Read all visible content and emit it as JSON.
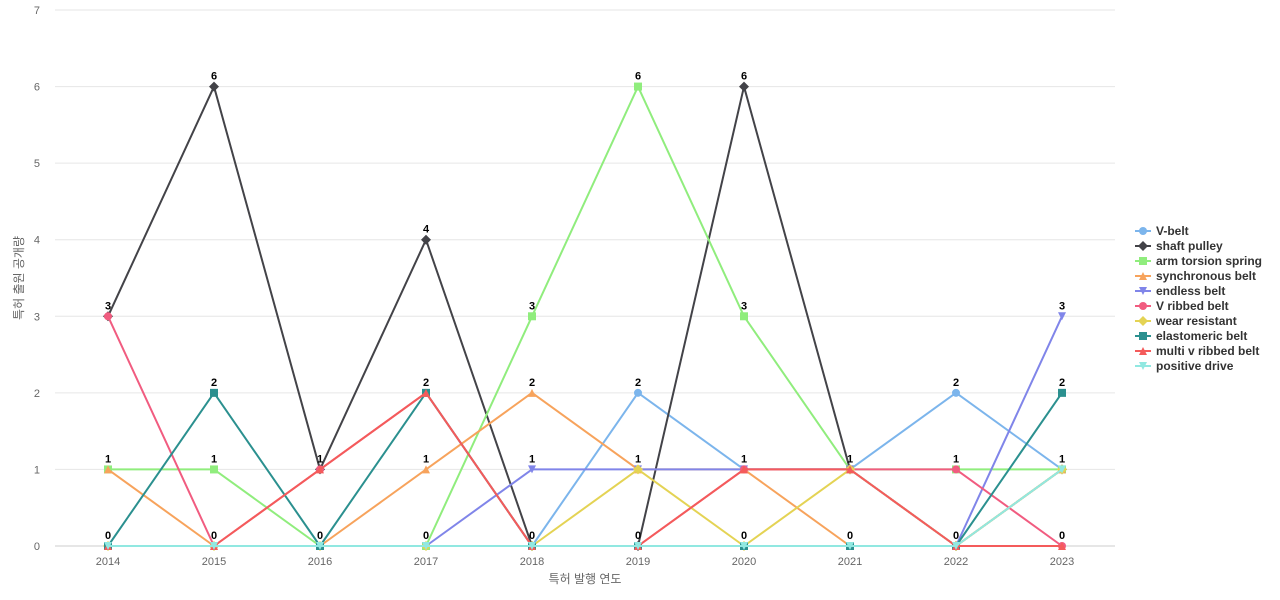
{
  "chart_data": {
    "type": "line",
    "title": "",
    "xlabel": "특허 발행 연도",
    "ylabel": "특허 출원 공개량",
    "categories": [
      "2014",
      "2015",
      "2016",
      "2017",
      "2018",
      "2019",
      "2020",
      "2021",
      "2022",
      "2023"
    ],
    "ylim": [
      0,
      7
    ],
    "yticks": [
      "0",
      "1",
      "2",
      "3",
      "4",
      "5",
      "6",
      "7"
    ],
    "grid": true,
    "legend_position": "right",
    "series": [
      {
        "name": "V-belt",
        "color": "#7cb5ec",
        "marker": "circle",
        "values": [
          0,
          0,
          0,
          0,
          0,
          2,
          1,
          1,
          2,
          1
        ]
      },
      {
        "name": "shaft pulley",
        "color": "#434348",
        "marker": "diamond",
        "values": [
          3,
          6,
          1,
          4,
          0,
          0,
          6,
          1,
          0,
          1
        ]
      },
      {
        "name": "arm torsion spring",
        "color": "#90ed7d",
        "marker": "square",
        "values": [
          1,
          1,
          0,
          0,
          3,
          6,
          3,
          1,
          1,
          1
        ]
      },
      {
        "name": "synchronous belt",
        "color": "#f7a35c",
        "marker": "triangle",
        "values": [
          1,
          0,
          0,
          1,
          2,
          1,
          1,
          0,
          0,
          1
        ]
      },
      {
        "name": "endless belt",
        "color": "#8085e9",
        "marker": "triangle-down",
        "values": [
          0,
          0,
          0,
          0,
          1,
          1,
          1,
          1,
          0,
          3
        ]
      },
      {
        "name": "V ribbed belt",
        "color": "#f15c80",
        "marker": "circle",
        "values": [
          3,
          0,
          1,
          2,
          0,
          0,
          1,
          1,
          1,
          0
        ]
      },
      {
        "name": "wear resistant",
        "color": "#e4d354",
        "marker": "diamond",
        "values": [
          0,
          0,
          0,
          0,
          0,
          1,
          0,
          1,
          0,
          1
        ]
      },
      {
        "name": "elastomeric belt",
        "color": "#2b908f",
        "marker": "square",
        "values": [
          0,
          2,
          0,
          2,
          0,
          0,
          0,
          0,
          0,
          2
        ]
      },
      {
        "name": "multi v ribbed belt",
        "color": "#f45b5b",
        "marker": "triangle",
        "values": [
          0,
          0,
          1,
          2,
          0,
          0,
          1,
          1,
          0,
          0
        ]
      },
      {
        "name": "positive drive",
        "color": "#91e8e1",
        "marker": "triangle-down",
        "values": [
          0,
          0,
          0,
          0,
          0,
          0,
          0,
          0,
          0,
          1
        ]
      }
    ],
    "data_labels": [
      {
        "category": "2014",
        "values": [
          "3",
          "1",
          "0"
        ]
      },
      {
        "category": "2015",
        "values": [
          "6",
          "2",
          "1",
          "0"
        ]
      },
      {
        "category": "2016",
        "values": [
          "1",
          "0"
        ]
      },
      {
        "category": "2017",
        "values": [
          "4",
          "2",
          "1",
          "0"
        ]
      },
      {
        "category": "2018",
        "values": [
          "3",
          "2",
          "1",
          "0"
        ]
      },
      {
        "category": "2019",
        "values": [
          "6",
          "2",
          "1",
          "0"
        ]
      },
      {
        "category": "2020",
        "values": [
          "6",
          "3",
          "1",
          "0"
        ]
      },
      {
        "category": "2021",
        "values": [
          "1",
          "0"
        ]
      },
      {
        "category": "2022",
        "values": [
          "2",
          "1",
          "0"
        ]
      },
      {
        "category": "2023",
        "values": [
          "3",
          "2",
          "1",
          "0"
        ]
      }
    ]
  }
}
